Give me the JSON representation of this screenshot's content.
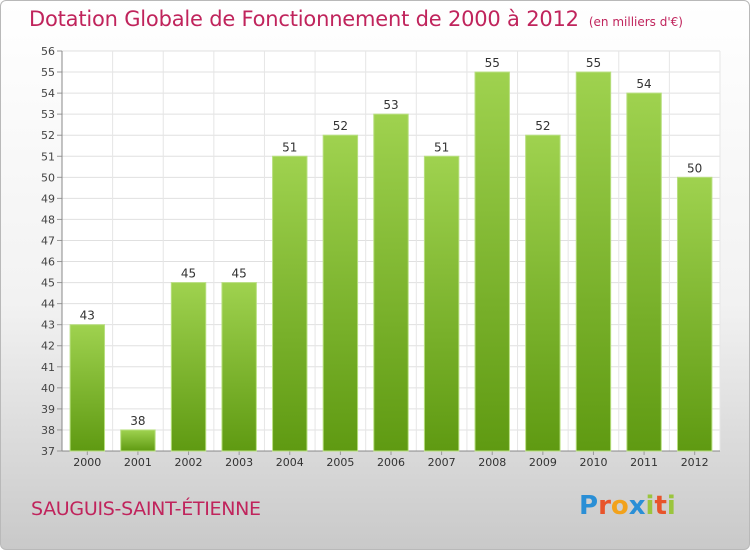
{
  "chart_data": {
    "type": "bar",
    "title": "Dotation Globale de Fonctionnement de 2000 à 2012",
    "subtitle": "(en milliers d'€)",
    "categories": [
      "2000",
      "2001",
      "2002",
      "2003",
      "2004",
      "2005",
      "2006",
      "2007",
      "2008",
      "2009",
      "2010",
      "2011",
      "2012"
    ],
    "values": [
      43,
      38,
      45,
      45,
      51,
      52,
      53,
      51,
      55,
      52,
      55,
      54,
      50
    ],
    "ylim": [
      37,
      56
    ],
    "yticks": [
      37,
      38,
      39,
      40,
      41,
      42,
      43,
      44,
      45,
      46,
      47,
      48,
      49,
      50,
      51,
      52,
      53,
      54,
      55,
      56
    ],
    "grid": true,
    "bar_color_top": "#9fd24f",
    "bar_color_bottom": "#5f9a12"
  },
  "footer": {
    "commune": "SAUGUIS-SAINT-ÉTIENNE",
    "logo_text": "Proxiti",
    "logo_colors": [
      "#2a8fd6",
      "#e8542b",
      "#f2a21b",
      "#2a8fd6",
      "#9bc53d",
      "#e8542b",
      "#9bc53d"
    ]
  }
}
